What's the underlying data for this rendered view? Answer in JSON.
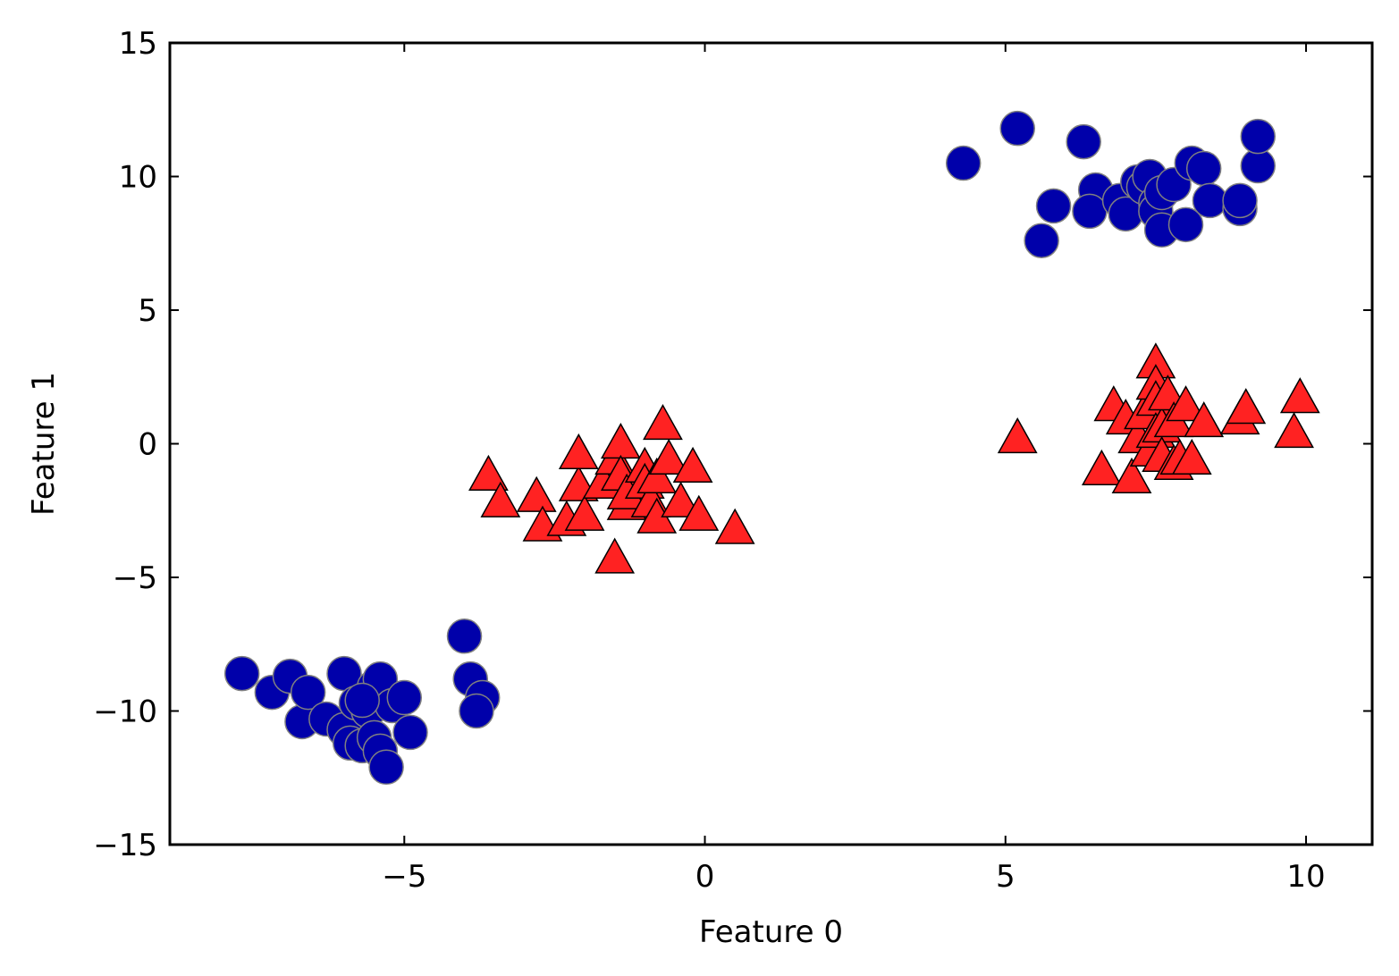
{
  "chart_data": {
    "type": "scatter",
    "title": "",
    "xlabel": "Feature 0",
    "ylabel": "Feature 1",
    "xlim": [
      -8.9,
      11.1
    ],
    "ylim": [
      -15,
      15
    ],
    "xticks": [
      -5,
      0,
      5,
      10
    ],
    "xtick_labels": [
      "−5",
      "0",
      "5",
      "10"
    ],
    "yticks": [
      -15,
      -10,
      -5,
      0,
      5,
      10,
      15
    ],
    "ytick_labels": [
      "−15",
      "−10",
      "−5",
      "0",
      "5",
      "10",
      "15"
    ],
    "grid": false,
    "legend": "none",
    "series": [
      {
        "marker": "circle",
        "color": "#0000aa",
        "edge_color": "#808080",
        "points": [
          [
            -7.7,
            -8.6
          ],
          [
            -7.2,
            -9.3
          ],
          [
            -6.9,
            -8.7
          ],
          [
            -6.7,
            -10.4
          ],
          [
            -6.6,
            -9.3
          ],
          [
            -6.3,
            -10.3
          ],
          [
            -6.0,
            -8.6
          ],
          [
            -6.0,
            -10.7
          ],
          [
            -5.9,
            -11.2
          ],
          [
            -5.8,
            -9.7
          ],
          [
            -5.7,
            -11.3
          ],
          [
            -5.6,
            -10.0
          ],
          [
            -5.5,
            -9.1
          ],
          [
            -5.5,
            -11.0
          ],
          [
            -5.4,
            -8.8
          ],
          [
            -5.4,
            -11.5
          ],
          [
            -5.2,
            -9.8
          ],
          [
            -5.0,
            -9.5
          ],
          [
            -4.9,
            -10.8
          ],
          [
            -5.3,
            -12.1
          ],
          [
            -5.7,
            -9.6
          ],
          [
            -4.0,
            -7.2
          ],
          [
            -3.9,
            -8.8
          ],
          [
            -3.7,
            -9.5
          ],
          [
            -3.8,
            -10.0
          ],
          [
            4.3,
            10.5
          ],
          [
            5.2,
            11.8
          ],
          [
            5.6,
            7.6
          ],
          [
            5.8,
            8.9
          ],
          [
            6.3,
            11.3
          ],
          [
            6.5,
            9.5
          ],
          [
            6.4,
            8.7
          ],
          [
            6.9,
            9.1
          ],
          [
            7.0,
            8.6
          ],
          [
            7.2,
            9.8
          ],
          [
            7.3,
            9.6
          ],
          [
            7.4,
            10.0
          ],
          [
            7.5,
            9.0
          ],
          [
            7.5,
            8.7
          ],
          [
            7.6,
            9.4
          ],
          [
            7.6,
            8.0
          ],
          [
            7.8,
            9.7
          ],
          [
            8.0,
            8.2
          ],
          [
            8.1,
            10.5
          ],
          [
            8.3,
            10.3
          ],
          [
            8.4,
            9.1
          ],
          [
            8.9,
            8.8
          ],
          [
            8.9,
            9.1
          ],
          [
            9.2,
            10.4
          ],
          [
            9.2,
            11.5
          ]
        ]
      },
      {
        "marker": "triangle",
        "color": "#ff2222",
        "edge_color": "#000000",
        "points": [
          [
            -3.6,
            -1.2
          ],
          [
            -3.4,
            -2.2
          ],
          [
            -2.8,
            -2.0
          ],
          [
            -2.7,
            -3.1
          ],
          [
            -2.3,
            -2.9
          ],
          [
            -2.1,
            -1.6
          ],
          [
            -2.1,
            -0.4
          ],
          [
            -2.0,
            -2.7
          ],
          [
            -1.7,
            -1.5
          ],
          [
            -1.5,
            -0.6
          ],
          [
            -1.5,
            -4.3
          ],
          [
            -1.4,
            0.0
          ],
          [
            -1.4,
            -1.2
          ],
          [
            -1.3,
            -2.3
          ],
          [
            -1.3,
            -1.9
          ],
          [
            -1.0,
            -0.9
          ],
          [
            -1.0,
            -1.5
          ],
          [
            -0.9,
            -2.2
          ],
          [
            -0.8,
            -2.8
          ],
          [
            -0.8,
            -1.3
          ],
          [
            -0.7,
            0.7
          ],
          [
            -0.6,
            -0.6
          ],
          [
            -0.4,
            -2.2
          ],
          [
            -0.2,
            -0.9
          ],
          [
            -0.1,
            -2.7
          ],
          [
            0.5,
            -3.2
          ],
          [
            5.2,
            0.2
          ],
          [
            6.6,
            -1.0
          ],
          [
            6.8,
            1.4
          ],
          [
            7.0,
            0.9
          ],
          [
            7.1,
            -1.3
          ],
          [
            7.2,
            0.2
          ],
          [
            7.3,
            1.1
          ],
          [
            7.4,
            -0.3
          ],
          [
            7.5,
            3.0
          ],
          [
            7.5,
            2.2
          ],
          [
            7.5,
            1.6
          ],
          [
            7.5,
            0.4
          ],
          [
            7.6,
            0.6
          ],
          [
            7.6,
            -0.5
          ],
          [
            7.7,
            1.8
          ],
          [
            7.8,
            0.8
          ],
          [
            7.8,
            -0.8
          ],
          [
            7.9,
            -0.6
          ],
          [
            8.0,
            1.4
          ],
          [
            8.1,
            -0.6
          ],
          [
            8.3,
            0.8
          ],
          [
            8.9,
            0.9
          ],
          [
            9.0,
            1.3
          ],
          [
            9.8,
            0.4
          ],
          [
            9.9,
            1.7
          ]
        ]
      }
    ]
  }
}
